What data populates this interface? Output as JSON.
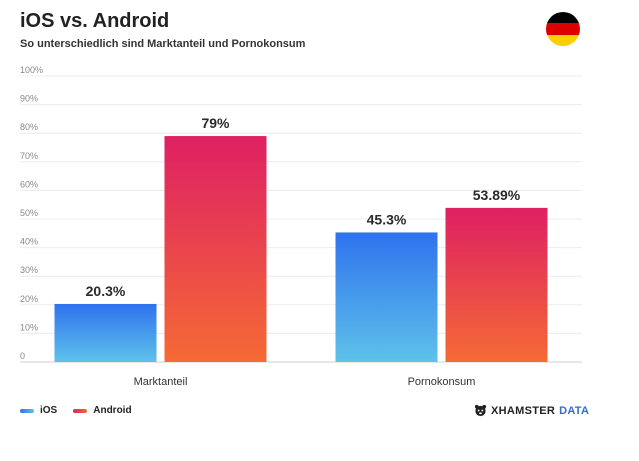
{
  "header": {
    "title": "iOS vs. Android",
    "subtitle": "So unterschiedlich sind Marktanteil und Pornokonsum"
  },
  "flag": {
    "icon": "germany-flag-icon",
    "colors": [
      "#000000",
      "#dd0000",
      "#ffce00"
    ]
  },
  "legend": {
    "items": [
      {
        "label": "iOS",
        "color": "#2f86e8"
      },
      {
        "label": "Android",
        "color": "#e0365a"
      }
    ]
  },
  "brand": {
    "icon": "hamster-logo-icon",
    "name": "XHAMSTER",
    "suffix": "DATA"
  },
  "chart_data": {
    "type": "bar",
    "categories": [
      "Marktanteil",
      "Pornokonsum"
    ],
    "series": [
      {
        "name": "iOS",
        "values": [
          20.3,
          45.3
        ],
        "labels": [
          "20.3%",
          "45.3%"
        ],
        "color_top": "#2f72ee",
        "color_bottom": "#5ec2ea"
      },
      {
        "name": "Android",
        "values": [
          79,
          53.89
        ],
        "labels": [
          "79%",
          "53.89%"
        ],
        "color_top": "#de2063",
        "color_bottom": "#f56a35"
      }
    ],
    "yticks": [
      "0",
      "10%",
      "20%",
      "30%",
      "40%",
      "50%",
      "60%",
      "70%",
      "80%",
      "90%",
      "100%"
    ],
    "ylim": [
      0,
      100
    ],
    "grid": true,
    "legend_position": "bottom-left"
  }
}
